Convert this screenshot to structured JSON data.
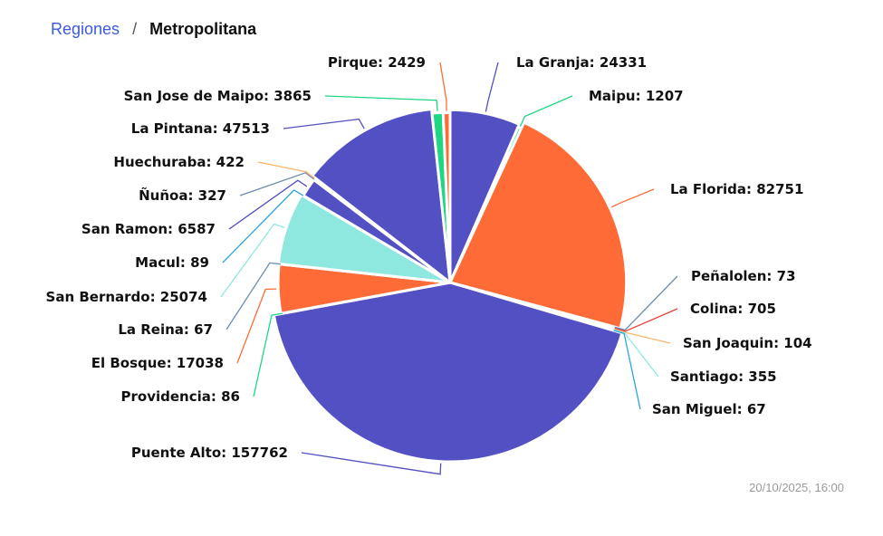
{
  "breadcrumb": {
    "parent": "Regiones",
    "separator": "/",
    "current": "Metropolitana"
  },
  "timestamp": "20/10/2025, 16:00",
  "chart_data": {
    "type": "pie",
    "title": "",
    "legend": "none",
    "slices": [
      {
        "name": "La Granja",
        "value": 24331,
        "color": "#5350c4",
        "label": "La Granja: 24331"
      },
      {
        "name": "Maipu",
        "value": 1207,
        "color": "#1ed783",
        "label": "Maipu: 1207"
      },
      {
        "name": "La Florida",
        "value": 82751,
        "color": "#fe6b37",
        "label": "La Florida: 82751"
      },
      {
        "name": "Peñalolen",
        "value": 73,
        "color": "#6a8caf",
        "label": "Peñalolen: 73"
      },
      {
        "name": "Colina",
        "value": 705,
        "color": "#e8403a",
        "label": "Colina: 705"
      },
      {
        "name": "San Joaquin",
        "value": 104,
        "color": "#ffb36b",
        "label": "San Joaquin: 104"
      },
      {
        "name": "Santiago",
        "value": 355,
        "color": "#8fe8e0",
        "label": "Santiago: 355"
      },
      {
        "name": "San Miguel",
        "value": 67,
        "color": "#29a6e0",
        "label": "San Miguel: 67"
      },
      {
        "name": "Puente Alto",
        "value": 157762,
        "color": "#5350c4",
        "label": "Puente Alto: 157762"
      },
      {
        "name": "Providencia",
        "value": 86,
        "color": "#1ed783",
        "label": "Providencia: 86"
      },
      {
        "name": "El Bosque",
        "value": 17038,
        "color": "#fe6b37",
        "label": "El Bosque: 17038"
      },
      {
        "name": "La Reina",
        "value": 67,
        "color": "#6a8caf",
        "label": "La Reina: 67"
      },
      {
        "name": "San Bernardo",
        "value": 25074,
        "color": "#8fe8e0",
        "label": "San Bernardo: 25074"
      },
      {
        "name": "Macul",
        "value": 89,
        "color": "#29a6e0",
        "label": "Macul: 89"
      },
      {
        "name": "San Ramon",
        "value": 6587,
        "color": "#5350c4",
        "label": "San Ramon: 6587"
      },
      {
        "name": "Ñuñoa",
        "value": 327,
        "color": "#6a8caf",
        "label": "Ñuñoa: 327"
      },
      {
        "name": "Huechuraba",
        "value": 422,
        "color": "#ffb36b",
        "label": "Huechuraba: 422"
      },
      {
        "name": "La Pintana",
        "value": 47513,
        "color": "#5350c4",
        "label": "La Pintana: 47513"
      },
      {
        "name": "San Jose de Maipo",
        "value": 3865,
        "color": "#1ed783",
        "label": "San Jose de Maipo: 3865"
      },
      {
        "name": "Pirque",
        "value": 2429,
        "color": "#fe6b37",
        "label": "Pirque: 2429"
      }
    ]
  }
}
